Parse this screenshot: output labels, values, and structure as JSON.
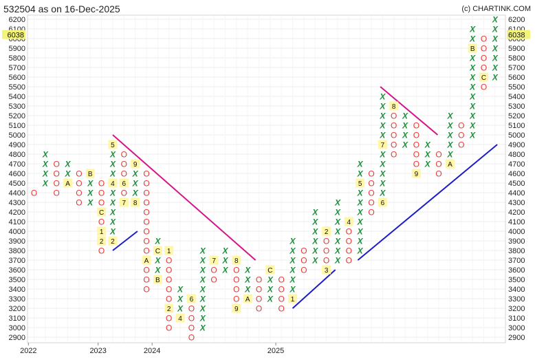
{
  "title": "532504 as on 16-Dec-2025",
  "copyright": "(c) CHARTINK.COM",
  "colors": {
    "x": "#1e8e3e",
    "o": "#e53935",
    "month_bg": "#fff6a8",
    "price_bg": "#f3f37a",
    "resistance": "#d4148a",
    "support": "#1b1bc9"
  },
  "chart_data": {
    "type": "point-and-figure",
    "box_size": 100,
    "ylim": [
      2900,
      6200
    ],
    "y_ticks": [
      2900,
      3000,
      3100,
      3200,
      3300,
      3400,
      3500,
      3600,
      3700,
      3800,
      3900,
      4000,
      4100,
      4200,
      4300,
      4400,
      4500,
      4600,
      4700,
      4800,
      4900,
      5000,
      5100,
      5200,
      5300,
      5400,
      5500,
      5600,
      5700,
      5800,
      5900,
      6000,
      6100,
      6200
    ],
    "current_price": "6038",
    "current_price_value": 6038,
    "x_labels": [
      {
        "label": "2022",
        "col": -0.5
      },
      {
        "label": "2023",
        "col": 5.7
      },
      {
        "label": "2024",
        "col": 10.5
      },
      {
        "label": "2025",
        "col": 21.5
      }
    ],
    "columns": [
      {
        "type": "O",
        "low": 4400,
        "high": 4400,
        "marks": {}
      },
      {
        "type": "X",
        "low": 4500,
        "high": 4800,
        "marks": {}
      },
      {
        "type": "O",
        "low": 4400,
        "high": 4700,
        "marks": {}
      },
      {
        "type": "X",
        "low": 4500,
        "high": 4700,
        "marks": {
          "4500": "A"
        }
      },
      {
        "type": "O",
        "low": 4300,
        "high": 4600,
        "marks": {}
      },
      {
        "type": "X",
        "low": 4300,
        "high": 4600,
        "marks": {
          "4600": "B"
        }
      },
      {
        "type": "O",
        "low": 3800,
        "high": 4500,
        "marks": {
          "4200": "C",
          "4000": "1",
          "3900": "2"
        }
      },
      {
        "type": "X",
        "low": 3900,
        "high": 4900,
        "marks": {
          "4900": "5",
          "4500": "4",
          "3900": "2"
        }
      },
      {
        "type": "O",
        "low": 4300,
        "high": 4800,
        "marks": {
          "4500": "6",
          "4300": "7"
        }
      },
      {
        "type": "X",
        "low": 4300,
        "high": 4700,
        "marks": {
          "4700": "9",
          "4300": "8"
        }
      },
      {
        "type": "O",
        "low": 3400,
        "high": 4600,
        "marks": {
          "3700": "A"
        }
      },
      {
        "type": "X",
        "low": 3500,
        "high": 3900,
        "marks": {
          "3800": "C",
          "3500": "B"
        }
      },
      {
        "type": "O",
        "low": 3000,
        "high": 3800,
        "marks": {
          "3800": "1",
          "3200": "2"
        }
      },
      {
        "type": "X",
        "low": 3100,
        "high": 3400,
        "marks": {
          "3100": "4"
        }
      },
      {
        "type": "O",
        "low": 2900,
        "high": 3300,
        "marks": {
          "3300": "6"
        }
      },
      {
        "type": "X",
        "low": 3000,
        "high": 3800,
        "marks": {}
      },
      {
        "type": "O",
        "low": 3500,
        "high": 3700,
        "marks": {
          "3700": "7"
        }
      },
      {
        "type": "X",
        "low": 3600,
        "high": 3800,
        "marks": {}
      },
      {
        "type": "O",
        "low": 3200,
        "high": 3700,
        "marks": {
          "3700": "8",
          "3200": "9"
        }
      },
      {
        "type": "X",
        "low": 3300,
        "high": 3600,
        "marks": {
          "3300": "A"
        }
      },
      {
        "type": "O",
        "low": 3200,
        "high": 3500,
        "marks": {}
      },
      {
        "type": "X",
        "low": 3300,
        "high": 3600,
        "marks": {
          "3600": "C"
        }
      },
      {
        "type": "O",
        "low": 3200,
        "high": 3500,
        "marks": {}
      },
      {
        "type": "X",
        "low": 3300,
        "high": 3900,
        "marks": {
          "3300": "1"
        }
      },
      {
        "type": "O",
        "low": 3600,
        "high": 3800,
        "marks": {}
      },
      {
        "type": "X",
        "low": 3700,
        "high": 4200,
        "marks": {}
      },
      {
        "type": "O",
        "low": 3600,
        "high": 4000,
        "marks": {
          "4000": "2",
          "3600": "3"
        }
      },
      {
        "type": "X",
        "low": 3700,
        "high": 4300,
        "marks": {}
      },
      {
        "type": "O",
        "low": 3700,
        "high": 4100,
        "marks": {
          "4100": "4"
        }
      },
      {
        "type": "X",
        "low": 3800,
        "high": 4700,
        "marks": {
          "4500": "5"
        }
      },
      {
        "type": "O",
        "low": 4200,
        "high": 4600,
        "marks": {}
      },
      {
        "type": "X",
        "low": 4300,
        "high": 5400,
        "marks": {
          "4900": "7",
          "4300": "6"
        }
      },
      {
        "type": "O",
        "low": 4800,
        "high": 5300,
        "marks": {
          "5300": "8"
        }
      },
      {
        "type": "X",
        "low": 4900,
        "high": 5200,
        "marks": {}
      },
      {
        "type": "O",
        "low": 4600,
        "high": 5100,
        "marks": {
          "4600": "9"
        }
      },
      {
        "type": "X",
        "low": 4700,
        "high": 4900,
        "marks": {}
      },
      {
        "type": "O",
        "low": 4600,
        "high": 4800,
        "marks": {}
      },
      {
        "type": "X",
        "low": 4700,
        "high": 5200,
        "marks": {
          "4700": "A"
        }
      },
      {
        "type": "O",
        "low": 4900,
        "high": 5100,
        "marks": {}
      },
      {
        "type": "X",
        "low": 5000,
        "high": 6100,
        "marks": {
          "5900": "B"
        }
      },
      {
        "type": "O",
        "low": 5500,
        "high": 6000,
        "marks": {
          "5600": "C"
        }
      },
      {
        "type": "X",
        "low": 5600,
        "high": 6200,
        "marks": {}
      }
    ],
    "trendlines": [
      {
        "kind": "resistance",
        "from": {
          "col": 7,
          "price": 5000
        },
        "to": {
          "col": 19.7,
          "price": 3700
        }
      },
      {
        "kind": "support",
        "from": {
          "col": 7,
          "price": 3800
        },
        "to": {
          "col": 9.2,
          "price": 4000
        }
      },
      {
        "kind": "support",
        "from": {
          "col": 23,
          "price": 3200
        },
        "to": {
          "col": 26.8,
          "price": 3600
        }
      },
      {
        "kind": "resistance",
        "from": {
          "col": 30.8,
          "price": 5500
        },
        "to": {
          "col": 35.9,
          "price": 5000
        }
      },
      {
        "kind": "support",
        "from": {
          "col": 28.8,
          "price": 3700
        },
        "to": {
          "col": 41.2,
          "price": 4900
        }
      }
    ]
  }
}
